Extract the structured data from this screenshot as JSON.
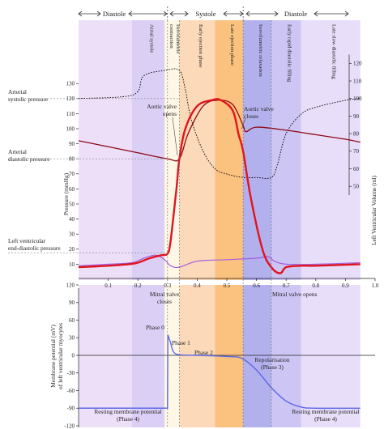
{
  "header": {
    "diastole_left": "Diastole",
    "systole": "Systole",
    "diastole_right": "Diastole"
  },
  "phases": [
    {
      "label": "Atrial systole",
      "t0": 0.18,
      "t1": 0.29,
      "color": "#dccff5"
    },
    {
      "label": "Isovolumetric contraction",
      "t0": 0.29,
      "t1": 0.34,
      "color": "#fff7e6"
    },
    {
      "label": "Early ejection phase",
      "t0": 0.34,
      "t1": 0.46,
      "color": "#fcd9b8"
    },
    {
      "label": "Late ejection phase",
      "t0": 0.46,
      "t1": 0.555,
      "color": "#fbc27f"
    },
    {
      "label": "Isovolumetric relaxation",
      "t0": 0.555,
      "t1": 0.65,
      "color": "#b3b0ee"
    },
    {
      "label": "Early rapid diastolic filling",
      "t0": 0.65,
      "t1": 0.75,
      "color": "#cdc5f3"
    },
    {
      "label": "Late slow diastolic filling",
      "t0": 0.75,
      "t1": 0.95,
      "color": "#e8defa"
    }
  ],
  "base_color": "#eedff9",
  "pressure_panel": {
    "y_label": "Pressure (mmHg)",
    "y_ticks": [
      "10",
      "20",
      "30",
      "40",
      "50",
      "60",
      "70",
      "80",
      "90",
      "100",
      "110",
      "120",
      "130"
    ],
    "volume_label": "Left Ventricular Volume (ml)",
    "volume_ticks": [
      "50",
      "60",
      "70",
      "80",
      "90",
      "100",
      "110",
      "120"
    ],
    "x_ticks": [
      "0.1",
      "0.2",
      "0.3",
      "0.4",
      "0.5",
      "0.6",
      "0.7",
      "0.8",
      "0.9",
      "1.0"
    ],
    "left_labels": {
      "arterial_systolic": "Arterial\nsystolic pressure",
      "arterial_diastolic": "Arterial\ndiastolic pressure",
      "lv_end_diastolic": "Left ventricular\nend-diastolic pressure"
    },
    "annotations": {
      "aortic_valve_opens": "Aortic valve\nopens",
      "aortic_valve_closes": "Aortic valve\ncloses",
      "mitral_valve_closes": "Mitral valve\ncloses",
      "mitral_valve_opens": "Mitral valve opens"
    },
    "colors": {
      "aortic": "#8b0a14",
      "ventricular": "#e0141e",
      "atrial": "#a45ee0",
      "volume": "#000000"
    }
  },
  "chart_data": [
    {
      "type": "line",
      "xlim": [
        0,
        1.0
      ],
      "ylim": [
        0,
        130
      ],
      "series": [
        {
          "name": "Arterial pressure",
          "x": [
            0,
            0.1,
            0.2,
            0.3,
            0.34,
            0.37,
            0.42,
            0.47,
            0.52,
            0.555,
            0.565,
            0.6,
            0.7,
            0.8,
            0.9,
            0.95
          ],
          "y": [
            92,
            88,
            84,
            80,
            80,
            97,
            115,
            119,
            116,
            102,
            98,
            101,
            99,
            96,
            93,
            91
          ]
        },
        {
          "name": "Left ventricular pressure",
          "x": [
            0,
            0.1,
            0.17,
            0.2,
            0.24,
            0.28,
            0.3,
            0.31,
            0.33,
            0.34,
            0.36,
            0.4,
            0.45,
            0.48,
            0.52,
            0.54,
            0.555,
            0.58,
            0.62,
            0.65,
            0.68,
            0.7,
            0.75,
            0.8,
            0.95
          ],
          "y": [
            8,
            9,
            10,
            11,
            14,
            16,
            17,
            25,
            60,
            80,
            100,
            115,
            119,
            119,
            112,
            96,
            85,
            55,
            20,
            8,
            4,
            8,
            9,
            9,
            10
          ]
        },
        {
          "name": "Left atrial pressure",
          "x": [
            0,
            0.1,
            0.18,
            0.22,
            0.26,
            0.29,
            0.31,
            0.34,
            0.4,
            0.5,
            0.6,
            0.64,
            0.66,
            0.7,
            0.8,
            0.95
          ],
          "y": [
            9,
            10,
            11,
            14,
            16,
            13,
            9,
            8,
            12,
            13,
            14,
            15,
            12,
            10,
            10,
            11
          ]
        },
        {
          "name": "Left ventricular volume",
          "x": [
            0,
            0.15,
            0.2,
            0.22,
            0.29,
            0.34,
            0.36,
            0.38,
            0.42,
            0.46,
            0.5,
            0.555,
            0.6,
            0.65,
            0.67,
            0.7,
            0.75,
            0.8,
            0.9,
            0.95
          ],
          "y": [
            100,
            101,
            104,
            113,
            116,
            116,
            105,
            88,
            70,
            60,
            57,
            55,
            55,
            55,
            62,
            80,
            91,
            95,
            99,
            100
          ],
          "ylim": [
            45,
            125
          ]
        }
      ]
    },
    {
      "type": "line",
      "ylim": [
        -120,
        120
      ],
      "y_label": "Membrane potential (mV)\nof left ventricular myocytes",
      "y_ticks": [
        "120",
        "90",
        "60",
        "30",
        "0",
        "-30",
        "-60",
        "-90",
        "-120"
      ],
      "series": [
        {
          "x": [
            0,
            0.3,
            0.301,
            0.31,
            0.32,
            0.34,
            0.4,
            0.5,
            0.55,
            0.6,
            0.65,
            0.7,
            0.75,
            0.8,
            0.95
          ],
          "y": [
            -90,
            -90,
            35,
            22,
            6,
            1,
            0,
            -2,
            -5,
            -25,
            -55,
            -78,
            -88,
            -90,
            -90
          ]
        }
      ],
      "labels": {
        "phase0": "Phase 0",
        "phase1": "Phase 1",
        "phase2": "Phase 2",
        "repolarisation": "Repolarisation\n(Phase 3)",
        "resting_left": "Resting membrane potential\n(Phase 4)",
        "resting_right": "Resting membrane potential\n(Phase 4)"
      }
    }
  ]
}
